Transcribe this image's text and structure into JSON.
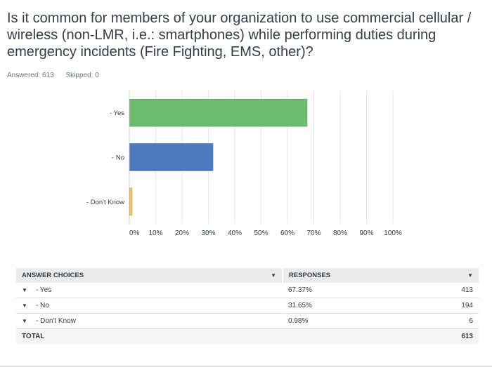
{
  "question": "Is it common for members of your organization to use commercial cellular / wireless (non-LMR, i.e.: smartphones) while performing duties during emergency incidents (Fire Fighting, EMS, other)?",
  "answered_label": "Answered: 613",
  "skipped_label": "Skipped: 0",
  "chart_data": {
    "type": "bar",
    "orientation": "horizontal",
    "categories": [
      "- Yes",
      "- No",
      "- Don't Know"
    ],
    "values": [
      67.37,
      31.65,
      0.98
    ],
    "colors": [
      "#6abd6a",
      "#4c7ac1",
      "#f5c542"
    ],
    "tick_labels": [
      "0%",
      "10%",
      "20%",
      "30%",
      "40%",
      "50%",
      "60%",
      "70%",
      "80%",
      "90%",
      "100%"
    ],
    "xlim": [
      0,
      100
    ],
    "grid": true
  },
  "table": {
    "headers": {
      "choices": "ANSWER CHOICES",
      "responses": "RESPONSES"
    },
    "rows": [
      {
        "choice": "- Yes",
        "percent": "67.37%",
        "count": "413"
      },
      {
        "choice": "- No",
        "percent": "31.65%",
        "count": "194"
      },
      {
        "choice": "- Don't Know",
        "percent": "0.98%",
        "count": "6"
      }
    ],
    "total_label": "TOTAL",
    "total_count": "613"
  }
}
